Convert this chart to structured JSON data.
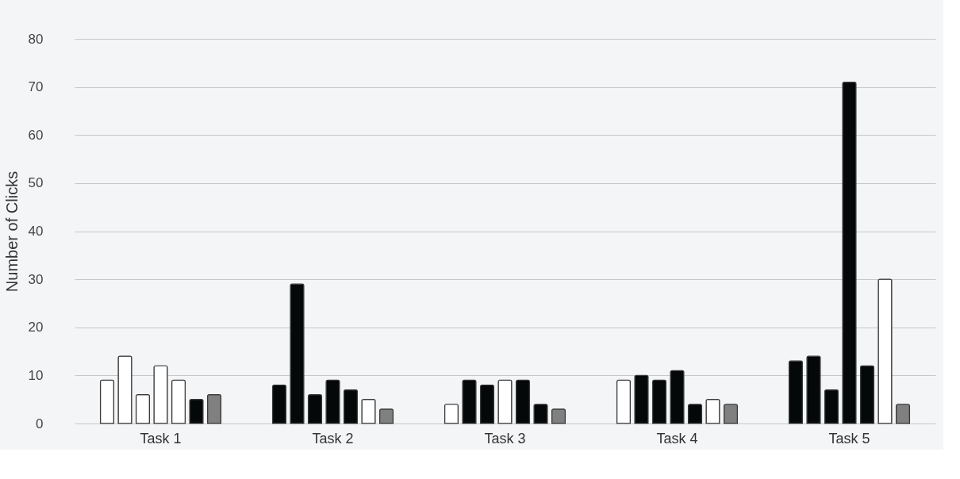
{
  "chart_data": {
    "type": "bar",
    "ylabel": "Number of Clicks",
    "categories": [
      "Task 1",
      "Task 2",
      "Task 3",
      "Task 4",
      "Task 5"
    ],
    "series": [
      {
        "colors": [
          "#ffffff",
          "#050809",
          "#ffffff",
          "#ffffff",
          "#050809"
        ],
        "values": [
          9,
          8,
          4,
          9,
          13
        ]
      },
      {
        "colors": [
          "#ffffff",
          "#050809",
          "#050809",
          "#050809",
          "#050809"
        ],
        "values": [
          14,
          29,
          9,
          10,
          14
        ]
      },
      {
        "colors": [
          "#ffffff",
          "#050809",
          "#050809",
          "#050809",
          "#050809"
        ],
        "values": [
          6,
          6,
          8,
          9,
          7
        ]
      },
      {
        "colors": [
          "#ffffff",
          "#050809",
          "#ffffff",
          "#050809",
          "#050809"
        ],
        "values": [
          12,
          9,
          9,
          11,
          71
        ]
      },
      {
        "colors": [
          "#ffffff",
          "#050809",
          "#050809",
          "#050809",
          "#050809"
        ],
        "values": [
          9,
          7,
          9,
          4,
          12
        ]
      },
      {
        "colors": [
          "#050809",
          "#ffffff",
          "#050809",
          "#ffffff",
          "#ffffff"
        ],
        "values": [
          5,
          5,
          4,
          5,
          30
        ]
      },
      {
        "colors": [
          "#808080",
          "#808080",
          "#808080",
          "#808080",
          "#808080"
        ],
        "values": [
          6,
          3,
          3,
          4,
          4
        ]
      }
    ],
    "ylim": [
      0,
      80
    ],
    "yticks": [
      0,
      10,
      20,
      30,
      40,
      50,
      60,
      70,
      80
    ],
    "grid": "y"
  }
}
